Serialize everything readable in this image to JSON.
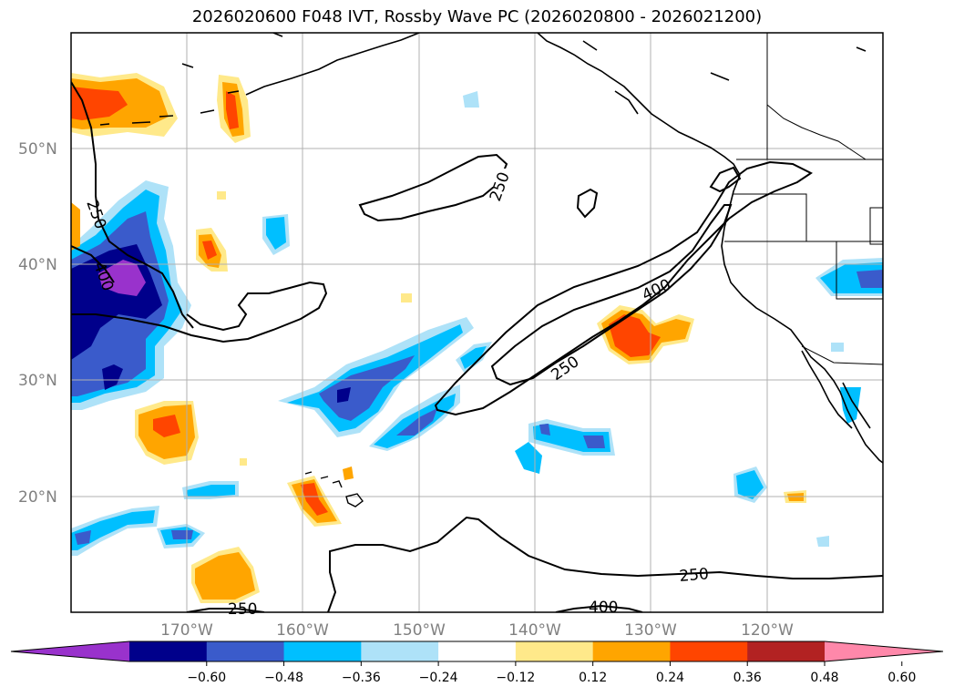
{
  "title": "2026020600 F048 IVT, Rossby Wave PC (2026020800 - 2026021200)",
  "latitude_labels": [
    "50°N",
    "40°N",
    "30°N",
    "20°N"
  ],
  "longitude_labels": [
    "170°W",
    "160°W",
    "150°W",
    "140°W",
    "130°W",
    "120°W"
  ],
  "contour_labels": {
    "c250_center": "250",
    "c250_west": "250",
    "c400_west": "400",
    "c400_mid": "400",
    "c250_mid": "250",
    "c250_south_east": "250",
    "c250_south_west": "250",
    "c400_south": "400"
  },
  "colorbar": {
    "tick_labels": [
      "−0.60",
      "−0.48",
      "−0.36",
      "−0.24",
      "−0.12",
      "0.12",
      "0.24",
      "0.36",
      "0.48",
      "0.60"
    ],
    "colors": [
      "#9932cc",
      "#00008b",
      "#3a5bcb",
      "#00bfff",
      "#aee2f8",
      "#ffffff",
      "#ffe98a",
      "#ffa500",
      "#ff4500",
      "#b22222",
      "#ff88aa"
    ]
  },
  "colors": {
    "grid": "#b0b0b0",
    "coast": "#000000",
    "contour": "#000000"
  }
}
